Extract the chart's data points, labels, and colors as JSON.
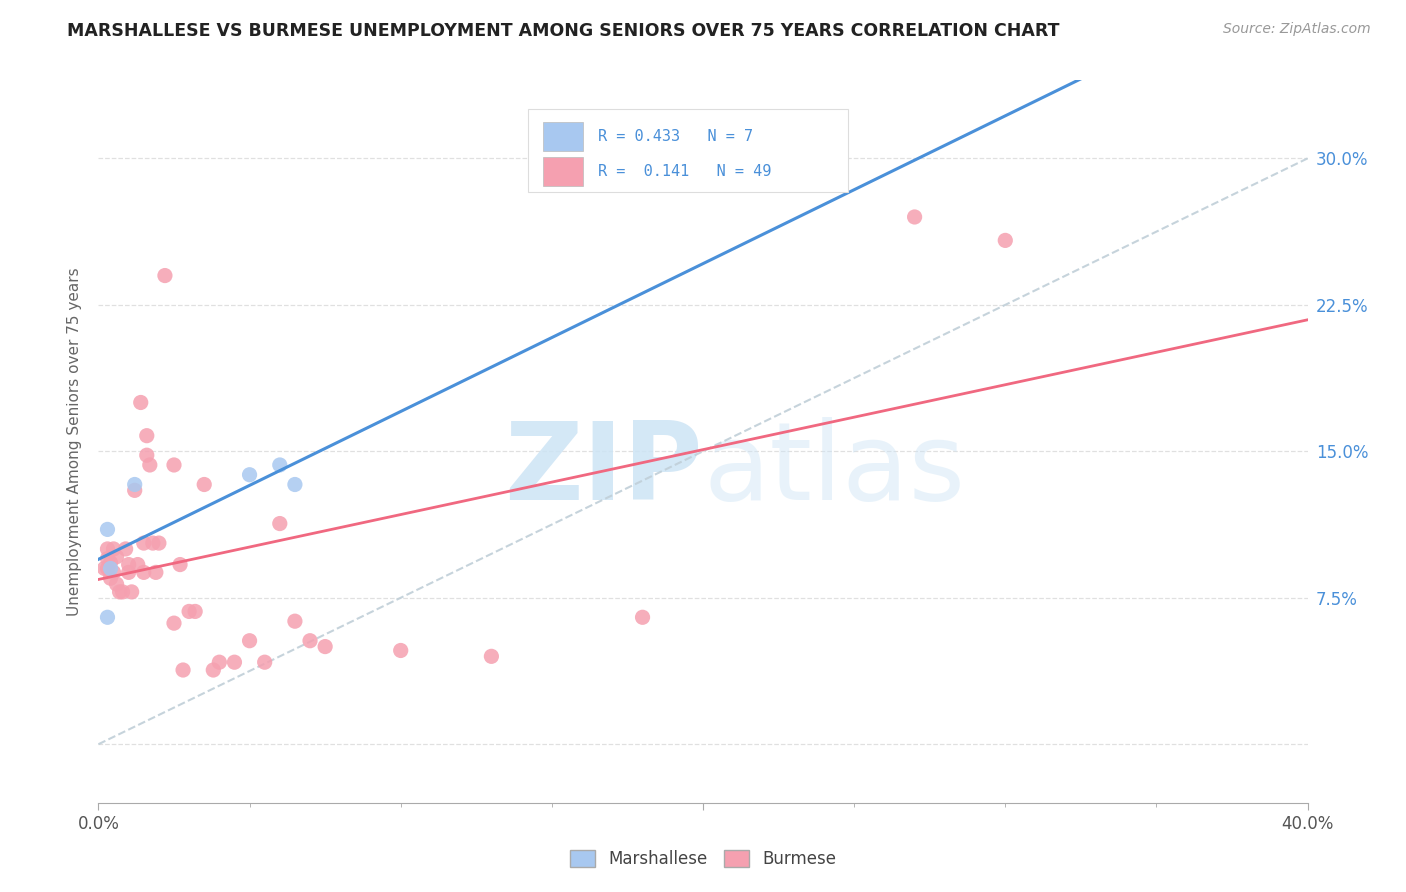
{
  "title": "MARSHALLESE VS BURMESE UNEMPLOYMENT AMONG SENIORS OVER 75 YEARS CORRELATION CHART",
  "source": "Source: ZipAtlas.com",
  "ylabel": "Unemployment Among Seniors over 75 years",
  "xlim": [
    0.0,
    0.4
  ],
  "ylim": [
    -0.03,
    0.34
  ],
  "xtick_major": [
    0.0,
    0.2,
    0.4
  ],
  "xtick_major_labels": [
    "0.0%",
    "",
    "40.0%"
  ],
  "xtick_minor": [
    0.05,
    0.1,
    0.15,
    0.25,
    0.3,
    0.35
  ],
  "yticks": [
    0.0,
    0.075,
    0.15,
    0.225,
    0.3
  ],
  "ytick_right_labels": [
    "",
    "7.5%",
    "15.0%",
    "22.5%",
    "30.0%"
  ],
  "marshallese_R": "0.433",
  "marshallese_N": "7",
  "burmese_R": "0.141",
  "burmese_N": "49",
  "marshallese_scatter_color": "#a8c8f0",
  "burmese_scatter_color": "#f5a0b0",
  "marshallese_line_color": "#4a90d9",
  "burmese_line_color": "#f06880",
  "dashed_line_color": "#c0cfd8",
  "grid_color": "#e0e0e0",
  "title_color": "#222222",
  "source_color": "#999999",
  "axis_label_color": "#666666",
  "right_tick_color": "#4a90d9",
  "legend_border_color": "#dddddd",
  "marshallese_x": [
    0.003,
    0.003,
    0.004,
    0.012,
    0.05,
    0.06,
    0.065
  ],
  "marshallese_y": [
    0.11,
    0.065,
    0.09,
    0.133,
    0.138,
    0.143,
    0.133
  ],
  "burmese_x": [
    0.002,
    0.003,
    0.003,
    0.003,
    0.004,
    0.004,
    0.005,
    0.005,
    0.006,
    0.006,
    0.007,
    0.008,
    0.009,
    0.01,
    0.01,
    0.011,
    0.012,
    0.013,
    0.014,
    0.015,
    0.015,
    0.016,
    0.016,
    0.017,
    0.018,
    0.019,
    0.02,
    0.022,
    0.025,
    0.025,
    0.027,
    0.028,
    0.03,
    0.032,
    0.035,
    0.038,
    0.04,
    0.045,
    0.05,
    0.055,
    0.06,
    0.065,
    0.07,
    0.075,
    0.1,
    0.13,
    0.18,
    0.27,
    0.3
  ],
  "burmese_y": [
    0.09,
    0.1,
    0.09,
    0.095,
    0.085,
    0.093,
    0.088,
    0.1,
    0.096,
    0.082,
    0.078,
    0.078,
    0.1,
    0.088,
    0.092,
    0.078,
    0.13,
    0.092,
    0.175,
    0.088,
    0.103,
    0.148,
    0.158,
    0.143,
    0.103,
    0.088,
    0.103,
    0.24,
    0.143,
    0.062,
    0.092,
    0.038,
    0.068,
    0.068,
    0.133,
    0.038,
    0.042,
    0.042,
    0.053,
    0.042,
    0.113,
    0.063,
    0.053,
    0.05,
    0.048,
    0.045,
    0.065,
    0.27,
    0.258
  ]
}
